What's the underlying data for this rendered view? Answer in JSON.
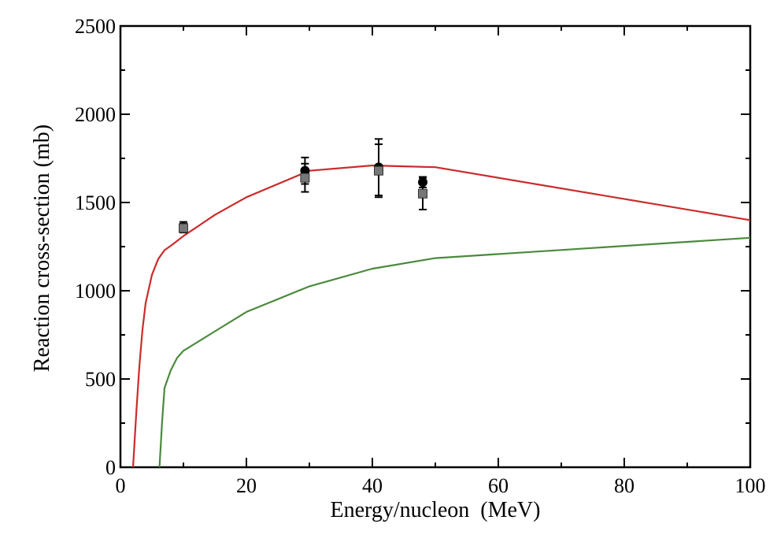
{
  "chart_data": {
    "type": "line",
    "title": "",
    "xlabel": "Energy/nucleon  (MeV)",
    "ylabel": "Reaction cross-section (mb)",
    "xlim": [
      0,
      100
    ],
    "ylim": [
      0,
      2500
    ],
    "xticks": [
      0,
      20,
      40,
      60,
      80,
      100
    ],
    "xtick_labels": [
      "0",
      "20",
      "40",
      "60",
      "80",
      "100"
    ],
    "yticks": [
      0,
      500,
      1000,
      1500,
      2000,
      2500
    ],
    "ytick_labels": [
      "0",
      "500",
      "1000",
      "1500",
      "2000",
      "2500"
    ],
    "grid": false,
    "series": [
      {
        "name": "red curve",
        "kind": "line",
        "color": "#cc2b2b",
        "x": [
          2,
          2.5,
          3,
          3.5,
          4,
          5,
          6,
          7,
          8,
          10,
          15,
          20,
          30,
          40,
          45,
          50,
          100
        ],
        "y": [
          0,
          300,
          570,
          780,
          930,
          1090,
          1180,
          1230,
          1255,
          1310,
          1430,
          1530,
          1680,
          1710,
          1705,
          1700,
          1400
        ]
      },
      {
        "name": "green curve",
        "kind": "line",
        "color": "#4a8a3c",
        "x": [
          6.2,
          6.6,
          7,
          8,
          9,
          10,
          15,
          20,
          30,
          40,
          50,
          100
        ],
        "y": [
          0,
          250,
          450,
          550,
          620,
          660,
          770,
          880,
          1025,
          1125,
          1185,
          1300
        ]
      },
      {
        "name": "filled circles",
        "kind": "points",
        "marker": "circle",
        "color": "#000000",
        "x": [
          10,
          29.3,
          41,
          48
        ],
        "y": [
          1360,
          1680,
          1700,
          1615
        ],
        "yerr": [
          30,
          75,
          160,
          30
        ]
      },
      {
        "name": "grey squares",
        "kind": "points",
        "marker": "square",
        "color": "#777777",
        "x": [
          10,
          29.3,
          41,
          48
        ],
        "y": [
          1355,
          1640,
          1680,
          1550
        ],
        "yerr": [
          25,
          80,
          150,
          90
        ]
      }
    ]
  }
}
